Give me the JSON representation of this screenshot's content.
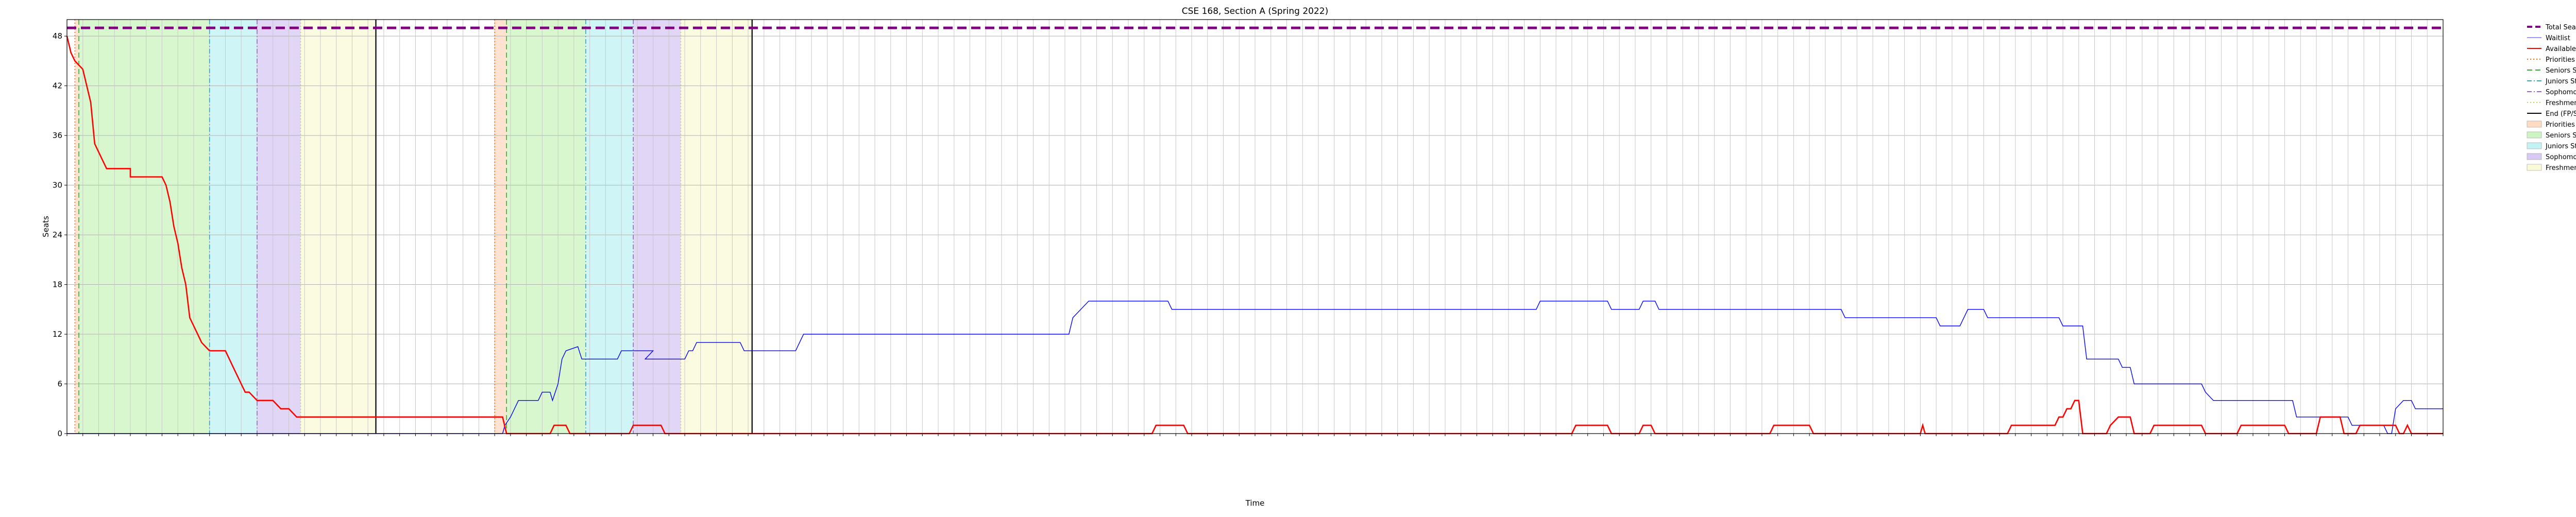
{
  "chart_data": {
    "type": "line",
    "title": "CSE 168, Section A (Spring 2022)",
    "xlabel": "Time",
    "ylabel": "Seats",
    "ylim": [
      0,
      50
    ],
    "yticks": [
      0,
      6,
      12,
      18,
      24,
      30,
      36,
      42,
      48
    ],
    "grid": true,
    "legend_position": "outside-top-right",
    "x_axis": "index of enrollment snapshot (0-300); tick label text printed on the original is not legible",
    "x_range": [
      0,
      300
    ],
    "total_seats": 49,
    "series": [
      {
        "name": "Total Seats",
        "color": "#800080",
        "style": "dashed",
        "points": [
          [
            0,
            49
          ],
          [
            300,
            49
          ]
        ]
      },
      {
        "name": "Waitlist",
        "color": "#0000ff",
        "style": "solid",
        "points": [
          [
            0,
            0
          ],
          [
            55,
            0
          ],
          [
            55.3,
            1
          ],
          [
            56,
            2
          ],
          [
            57,
            4
          ],
          [
            59.5,
            4
          ],
          [
            60,
            5
          ],
          [
            61,
            5
          ],
          [
            61.3,
            4
          ],
          [
            62,
            6
          ],
          [
            62.5,
            9
          ],
          [
            63,
            10
          ],
          [
            64.5,
            10.5
          ],
          [
            65,
            9
          ],
          [
            69.5,
            9
          ],
          [
            70,
            10
          ],
          [
            72,
            10
          ],
          [
            72.5,
            10
          ],
          [
            73,
            10
          ],
          [
            74,
            10
          ],
          [
            73,
            9
          ],
          [
            78,
            9
          ],
          [
            78.5,
            10
          ],
          [
            79,
            10
          ],
          [
            79.5,
            11
          ],
          [
            85,
            11
          ],
          [
            85.5,
            10
          ],
          [
            92,
            10
          ],
          [
            92.5,
            11
          ],
          [
            93,
            12
          ],
          [
            126.5,
            12
          ],
          [
            127,
            14
          ],
          [
            128,
            15
          ],
          [
            129,
            16
          ],
          [
            139,
            16
          ],
          [
            139.5,
            15
          ],
          [
            185.5,
            15
          ],
          [
            186,
            16
          ],
          [
            194.5,
            16
          ],
          [
            195,
            15
          ],
          [
            198.5,
            15
          ],
          [
            199,
            16
          ],
          [
            200.5,
            16
          ],
          [
            201,
            15
          ],
          [
            224,
            15
          ],
          [
            224.5,
            14
          ],
          [
            236,
            14
          ],
          [
            236.5,
            13
          ],
          [
            239,
            13
          ],
          [
            239.5,
            14
          ],
          [
            240,
            15
          ],
          [
            242,
            15
          ],
          [
            242.5,
            14
          ],
          [
            251.5,
            14
          ],
          [
            252,
            13
          ],
          [
            254.5,
            13
          ],
          [
            255,
            9
          ],
          [
            259,
            9
          ],
          [
            259.5,
            8
          ],
          [
            260.5,
            8
          ],
          [
            261,
            6
          ],
          [
            269.5,
            6
          ],
          [
            270,
            5
          ],
          [
            271,
            4
          ],
          [
            281,
            4
          ],
          [
            281.5,
            2
          ],
          [
            284,
            2
          ],
          [
            288,
            2
          ],
          [
            288.5,
            1
          ],
          [
            292.5,
            1
          ],
          [
            293,
            0
          ],
          [
            293.5,
            0
          ],
          [
            294,
            3
          ],
          [
            295,
            4
          ],
          [
            296,
            4
          ],
          [
            296.5,
            3
          ],
          [
            300,
            3
          ]
        ]
      },
      {
        "name": "Available",
        "color": "#ff0000",
        "style": "solid",
        "points": [
          [
            0,
            48
          ],
          [
            0.5,
            46
          ],
          [
            1,
            45
          ],
          [
            2,
            44
          ],
          [
            2.5,
            42
          ],
          [
            3,
            40
          ],
          [
            3.5,
            35
          ],
          [
            4,
            34
          ],
          [
            4.5,
            33
          ],
          [
            5,
            32
          ],
          [
            7,
            32
          ],
          [
            8,
            32
          ],
          [
            8,
            31
          ],
          [
            11,
            31
          ],
          [
            12,
            31
          ],
          [
            12.5,
            30
          ],
          [
            13,
            28
          ],
          [
            13.5,
            25
          ],
          [
            14,
            23
          ],
          [
            14.5,
            20
          ],
          [
            15,
            18
          ],
          [
            15.5,
            14
          ],
          [
            16,
            13
          ],
          [
            16.5,
            12
          ],
          [
            17,
            11
          ],
          [
            18,
            10
          ],
          [
            20,
            10
          ],
          [
            20.5,
            9
          ],
          [
            21,
            8
          ],
          [
            21.5,
            7
          ],
          [
            22,
            6
          ],
          [
            22.5,
            5
          ],
          [
            23,
            5
          ],
          [
            24,
            4
          ],
          [
            26,
            4
          ],
          [
            27,
            3
          ],
          [
            28,
            3
          ],
          [
            29,
            2
          ],
          [
            55,
            2
          ],
          [
            55.5,
            0
          ],
          [
            61,
            0
          ],
          [
            61.5,
            1
          ],
          [
            63,
            1
          ],
          [
            63.5,
            0
          ],
          [
            71,
            0
          ],
          [
            71.5,
            1
          ],
          [
            75,
            1
          ],
          [
            75.5,
            0
          ],
          [
            137,
            0
          ],
          [
            137.5,
            1
          ],
          [
            141,
            1
          ],
          [
            141.5,
            0
          ],
          [
            190,
            0
          ],
          [
            190.5,
            1
          ],
          [
            194.5,
            1
          ],
          [
            195,
            0
          ],
          [
            198.5,
            0
          ],
          [
            199,
            1
          ],
          [
            200,
            1
          ],
          [
            200.5,
            0
          ],
          [
            215,
            0
          ],
          [
            215.5,
            1
          ],
          [
            220,
            1
          ],
          [
            220.5,
            0
          ],
          [
            234,
            0
          ],
          [
            234.3,
            1
          ],
          [
            234.6,
            0
          ],
          [
            245,
            0
          ],
          [
            245.5,
            1
          ],
          [
            251,
            1
          ],
          [
            251.5,
            2
          ],
          [
            252,
            2
          ],
          [
            252.5,
            3
          ],
          [
            253,
            3
          ],
          [
            253.5,
            4
          ],
          [
            254,
            4
          ],
          [
            254.5,
            0
          ],
          [
            257.5,
            0
          ],
          [
            258,
            1
          ],
          [
            259,
            2
          ],
          [
            260.5,
            2
          ],
          [
            261,
            0
          ],
          [
            263,
            0
          ],
          [
            263.5,
            1
          ],
          [
            269.5,
            1
          ],
          [
            270,
            0
          ],
          [
            274,
            0
          ],
          [
            274.5,
            1
          ],
          [
            280,
            1
          ],
          [
            280.5,
            0
          ],
          [
            284,
            0
          ],
          [
            284.5,
            2
          ],
          [
            287,
            2
          ],
          [
            287.5,
            0
          ],
          [
            289,
            0
          ],
          [
            289.5,
            1
          ],
          [
            294,
            1
          ],
          [
            294.5,
            0
          ],
          [
            295,
            0
          ],
          [
            295.5,
            1
          ],
          [
            296,
            0
          ],
          [
            300,
            0
          ]
        ]
      }
    ],
    "vertical_markers": [
      {
        "name": "Priorities Start",
        "color": "#ff6600",
        "style": "dotted",
        "x": [
          1,
          54
        ]
      },
      {
        "name": "Seniors Start",
        "color": "#33aa33",
        "style": "dashed",
        "x": [
          1.5,
          55.5
        ]
      },
      {
        "name": "Juniors Start",
        "color": "#40a0c0",
        "style": "dashdot",
        "x": [
          18,
          65.5
        ]
      },
      {
        "name": "Sophomores Start",
        "color": "#9966cc",
        "style": "dashdot",
        "x": [
          24,
          71.5
        ]
      },
      {
        "name": "Freshmen Start",
        "color": "#cccc55",
        "style": "dotted",
        "x": [
          29.5,
          77.5
        ]
      },
      {
        "name": "End (FP/SP)",
        "color": "#000000",
        "style": "solid",
        "x": [
          39,
          86.5
        ]
      }
    ],
    "shaded_periods": [
      {
        "name": "Priorities Start",
        "color": "#ffccaa",
        "ranges": [
          [
            1,
            1.5
          ],
          [
            54,
            55.5
          ]
        ]
      },
      {
        "name": "Seniors Start",
        "color": "#b8f0a8",
        "ranges": [
          [
            1.5,
            18
          ],
          [
            55.5,
            65.5
          ]
        ]
      },
      {
        "name": "Juniors Start",
        "color": "#a8ecf0",
        "ranges": [
          [
            18,
            24
          ],
          [
            65.5,
            71.5
          ]
        ]
      },
      {
        "name": "Sophomores Start",
        "color": "#c8b4ee",
        "ranges": [
          [
            24,
            29.5
          ],
          [
            71.5,
            77.5
          ]
        ]
      },
      {
        "name": "Freshmen Start",
        "color": "#f8f8c8",
        "ranges": [
          [
            29.5,
            39
          ],
          [
            77.5,
            86.5
          ]
        ]
      }
    ],
    "legend_entries": [
      {
        "label": "Total Seats",
        "kind": "line",
        "color": "#800080",
        "style": "dashed"
      },
      {
        "label": "Waitlist",
        "kind": "line",
        "color": "#9999ff",
        "style": "solid"
      },
      {
        "label": "Available",
        "kind": "line",
        "color": "#ff0000",
        "style": "solid"
      },
      {
        "label": "Priorities Start",
        "kind": "line",
        "color": "#ff6600",
        "style": "dotted"
      },
      {
        "label": "Seniors Start",
        "kind": "line",
        "color": "#33aa33",
        "style": "dashed"
      },
      {
        "label": "Juniors Start",
        "kind": "line",
        "color": "#40a0c0",
        "style": "dashdot"
      },
      {
        "label": "Sophomores Start",
        "kind": "line",
        "color": "#9966cc",
        "style": "dashdot"
      },
      {
        "label": "Freshmen Start",
        "kind": "line",
        "color": "#cccc55",
        "style": "dotted"
      },
      {
        "label": "End (FP/SP)",
        "kind": "line",
        "color": "#000000",
        "style": "solid"
      },
      {
        "label": "Priorities Start",
        "kind": "patch",
        "color": "#ffccaa"
      },
      {
        "label": "Seniors Start",
        "kind": "patch",
        "color": "#b8f0a8"
      },
      {
        "label": "Juniors Start",
        "kind": "patch",
        "color": "#a8ecf0"
      },
      {
        "label": "Sophomores Start",
        "kind": "patch",
        "color": "#c8b4ee"
      },
      {
        "label": "Freshmen Start",
        "kind": "patch",
        "color": "#f8f8c8"
      }
    ]
  }
}
